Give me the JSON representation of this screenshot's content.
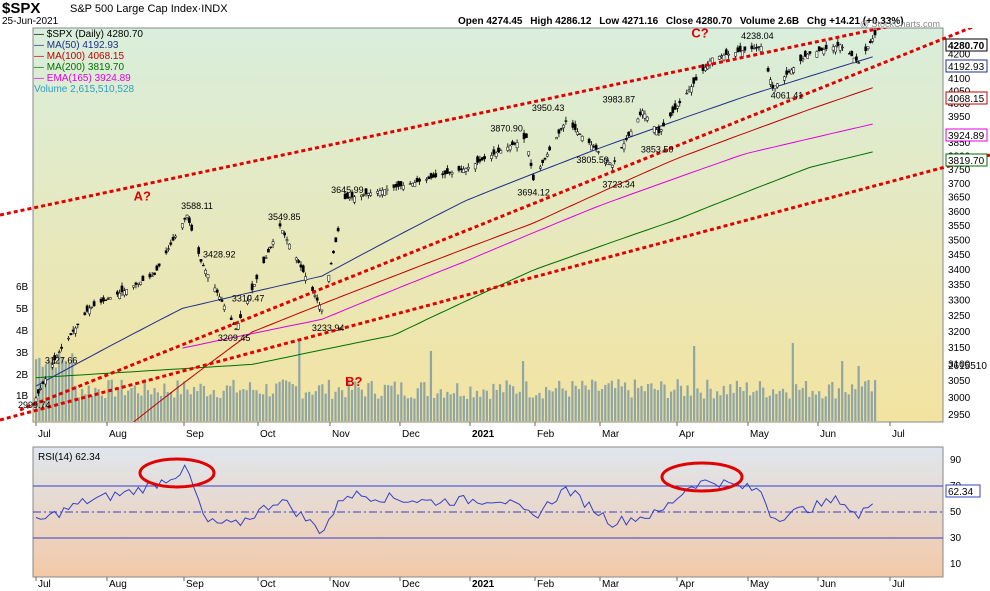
{
  "header": {
    "symbol": "$SPX",
    "name": "S&P 500 Large Cap Index",
    "exchange": "INDX",
    "date": "25-Jun-2021",
    "open": "Open 4274.45",
    "high": "High 4286.12",
    "low": "Low 4271.16",
    "close": "Close 4280.70",
    "volume": "Volume 2.6B",
    "change": "Chg +14.21 (+0.33%)",
    "watermark": "@ StockCharts.com"
  },
  "legend": [
    {
      "text": "$SPX (Daily) 4280.70",
      "color": "#000000"
    },
    {
      "text": "MA(50) 4192.93",
      "color": "#1f2f8a"
    },
    {
      "text": "MA(100) 4068.15",
      "color": "#c00000"
    },
    {
      "text": "MA(200) 3819.70",
      "color": "#007000"
    },
    {
      "text": "EMA(165) 3924.89",
      "color": "#e000e0"
    },
    {
      "text": "Volume 2,615,510,528",
      "color": "#2f9fbf"
    }
  ],
  "colors": {
    "price_panel_top": "#d9eedc",
    "price_panel_bottom": "#f3e3a0",
    "rsi_panel_top": "#dfe6ee",
    "rsi_panel_bottom": "#f3c9a8",
    "price": "#000000",
    "ma50": "#1f2f8a",
    "ma100": "#c00000",
    "ma200": "#007000",
    "ema165": "#e000e0",
    "volume": "#8fa6a4",
    "rsi": "#3340c8",
    "trendline": "#e00000",
    "annotation": "#e00000"
  },
  "chart_data": [
    {
      "type": "line",
      "panel": "price",
      "x_ticks": [
        "Jul",
        "Aug",
        "Sep",
        "Oct",
        "Nov",
        "Dec",
        "2021",
        "Feb",
        "Mar",
        "Apr",
        "May",
        "Jun",
        "Jul"
      ],
      "y_ticks": [
        2950,
        3000,
        3050,
        3100,
        3150,
        3200,
        3250,
        3300,
        3350,
        3400,
        3450,
        3500,
        3550,
        3600,
        3650,
        3700,
        3750,
        3800,
        3850,
        3900,
        3950,
        4000,
        4050,
        4100,
        4150,
        4200,
        4250
      ],
      "y_ticks_visible": [
        2950,
        3000,
        3050,
        3100,
        3150,
        3200,
        3250,
        3300,
        3350,
        3400,
        3450,
        3500,
        3550,
        3600,
        3650,
        3700,
        3750,
        3800,
        3850,
        3950,
        4000,
        4050,
        4100,
        4150,
        4200,
        4250
      ],
      "ylim": [
        2930,
        4310
      ],
      "scale": "log",
      "grid": false,
      "series": [
        {
          "name": "$SPX (Daily)",
          "x": [
            "2020-06-29",
            "2020-07-08",
            "2020-07-22",
            "2020-08-05",
            "2020-08-19",
            "2020-09-02",
            "2020-09-08",
            "2020-09-23",
            "2020-10-12",
            "2020-10-30",
            "2020-11-09",
            "2020-12-08",
            "2020-12-31",
            "2021-01-26",
            "2021-01-29",
            "2021-02-12",
            "2021-03-04",
            "2021-03-17",
            "2021-03-24",
            "2021-04-16",
            "2021-05-07",
            "2021-05-12",
            "2021-05-27",
            "2021-06-10",
            "2021-06-18",
            "2021-06-25"
          ],
          "values": [
            2999.74,
            3127.66,
            3276,
            3328,
            3385,
            3588.11,
            3428.92,
            3209.45,
            3549.85,
            3269.96,
            3645.99,
            3702,
            3756,
            3870.9,
            3714.24,
            3934.83,
            3768.47,
            3974.12,
            3889.14,
            4185.47,
            4232.6,
            4063.04,
            4200.88,
            4239.18,
            4166.45,
            4280.7
          ]
        },
        {
          "name": "MA(50)",
          "x": [
            "2020-06-29",
            "2020-08-31",
            "2020-10-30",
            "2020-12-31",
            "2021-02-26",
            "2021-04-30",
            "2021-06-25"
          ],
          "values": [
            3035,
            3275,
            3380,
            3640,
            3830,
            4030,
            4192.93
          ]
        },
        {
          "name": "MA(100)",
          "x": [
            "2020-08-10",
            "2020-09-30",
            "2020-11-30",
            "2021-01-29",
            "2021-03-31",
            "2021-05-28",
            "2021-06-25"
          ],
          "values": [
            2930,
            3200,
            3380,
            3560,
            3790,
            3980,
            4068.15
          ]
        },
        {
          "name": "MA(200)",
          "x": [
            "2020-06-29",
            "2020-09-30",
            "2020-11-30",
            "2021-01-29",
            "2021-03-31",
            "2021-05-28",
            "2021-06-25"
          ],
          "values": [
            3060,
            3100,
            3190,
            3400,
            3570,
            3760,
            3819.7
          ]
        },
        {
          "name": "EMA(165)",
          "x": [
            "2020-08-31",
            "2020-10-30",
            "2020-12-31",
            "2021-02-26",
            "2021-04-30",
            "2021-06-25"
          ],
          "values": [
            3150,
            3240,
            3430,
            3620,
            3810,
            3924.89
          ]
        }
      ],
      "annotations": [
        {
          "label": "3588.11",
          "x": "2020-09-02",
          "y": 3588.11
        },
        {
          "label": "3428.92",
          "x": "2020-09-08",
          "y": 3428.92
        },
        {
          "label": "3310.47",
          "x": "2020-09-23",
          "y": 3310.47
        },
        {
          "label": "3209.45",
          "x": "2020-09-23",
          "y": 3209.45
        },
        {
          "label": "3549.85",
          "x": "2020-10-12",
          "y": 3549.85
        },
        {
          "label": "3233.94",
          "x": "2020-10-30",
          "y": 3233.94
        },
        {
          "label": "3645.99",
          "x": "2020-11-09",
          "y": 3645.99
        },
        {
          "label": "3127.66",
          "x": "2020-07-08",
          "y": 3127.66
        },
        {
          "label": "2999.74",
          "x": "2020-06-29",
          "y": 2999.74
        },
        {
          "label": "3870.90",
          "x": "2021-01-26",
          "y": 3870.9
        },
        {
          "label": "3694.12",
          "x": "2021-01-29",
          "y": 3694.12
        },
        {
          "label": "3950.43",
          "x": "2021-02-12",
          "y": 3950.43
        },
        {
          "label": "3805.59",
          "x": "2021-03-04",
          "y": 3805.59
        },
        {
          "label": "3723.34",
          "x": "2021-03-04",
          "y": 3723.34
        },
        {
          "label": "3983.87",
          "x": "2021-03-17",
          "y": 3983.87
        },
        {
          "label": "3853.50",
          "x": "2021-03-24",
          "y": 3853.5
        },
        {
          "label": "4238.04",
          "x": "2021-05-07",
          "y": 4238.04
        },
        {
          "label": "4061.41",
          "x": "2021-05-12",
          "y": 4061.41
        }
      ],
      "wave_labels": [
        {
          "label": "A?",
          "x": "2020-08-10",
          "y": 3640
        },
        {
          "label": "B?",
          "x": "2020-11-09",
          "y": 3035
        },
        {
          "label": "C?",
          "x": "2021-04-07",
          "y": 4270
        }
      ],
      "price_tags": [
        "4280.70",
        "4192.93",
        "4068.15",
        "3924.89",
        "3819.70"
      ],
      "volume": {
        "y_ticks": [
          "1B",
          "2B",
          "3B",
          "4B",
          "5B",
          "6B"
        ],
        "last": "2615510"
      }
    },
    {
      "type": "line",
      "panel": "rsi",
      "title": "RSI(14) 62.34",
      "y_ticks": [
        10,
        30,
        50,
        70,
        90
      ],
      "ylim": [
        0,
        100
      ],
      "reference_lines": [
        30,
        50,
        70
      ],
      "last_tag": "62.34",
      "series": [
        {
          "name": "RSI(14)",
          "x": [
            "2020-06-29",
            "2020-07-20",
            "2020-08-10",
            "2020-08-20",
            "2020-09-02",
            "2020-09-10",
            "2020-09-23",
            "2020-10-12",
            "2020-10-30",
            "2020-11-09",
            "2020-12-15",
            "2021-01-15",
            "2021-01-29",
            "2021-02-12",
            "2021-03-04",
            "2021-03-24",
            "2021-04-07",
            "2021-04-16",
            "2021-05-07",
            "2021-05-12",
            "2021-06-10",
            "2021-06-18",
            "2021-06-25"
          ],
          "values": [
            42,
            58,
            66,
            72,
            83,
            42,
            40,
            60,
            35,
            64,
            58,
            60,
            46,
            68,
            42,
            49,
            71,
            74,
            66,
            45,
            60,
            45,
            62.34
          ]
        }
      ]
    }
  ]
}
